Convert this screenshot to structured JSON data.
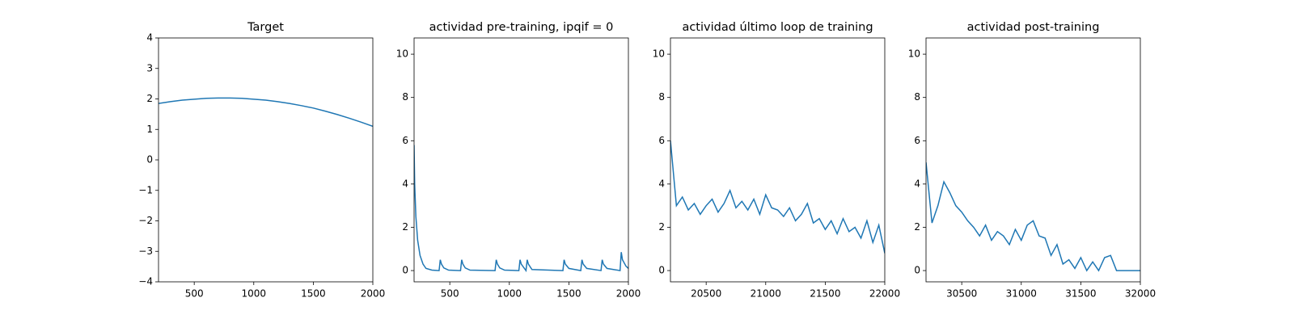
{
  "chart_data": [
    {
      "type": "line",
      "title": "Target",
      "color": "#1f77b4",
      "x": [
        200,
        300,
        400,
        500,
        600,
        700,
        800,
        900,
        1000,
        1100,
        1200,
        1300,
        1400,
        1500,
        1600,
        1700,
        1800,
        1900,
        2000
      ],
      "values": [
        1.85,
        1.91,
        1.96,
        1.99,
        2.02,
        2.03,
        2.03,
        2.02,
        1.99,
        1.96,
        1.91,
        1.85,
        1.78,
        1.7,
        1.6,
        1.49,
        1.37,
        1.24,
        1.1
      ],
      "xlim": [
        200,
        2000
      ],
      "xticks": [
        500,
        1000,
        1500,
        2000
      ],
      "ylim": [
        -4,
        4
      ],
      "yticks": [
        {
          "value": -4,
          "label": "−4"
        },
        {
          "value": -3,
          "label": "−3"
        },
        {
          "value": -2,
          "label": "−2"
        },
        {
          "value": -1,
          "label": "−1"
        },
        0,
        1,
        2,
        3,
        4
      ]
    },
    {
      "type": "line",
      "title": "actividad pre-training, ipqif = 0",
      "color": "#1f77b4",
      "x": [
        200,
        205,
        215,
        230,
        250,
        275,
        300,
        350,
        410,
        420,
        430,
        450,
        490,
        590,
        600,
        610,
        630,
        670,
        880,
        890,
        900,
        920,
        960,
        1080,
        1090,
        1100,
        1140,
        1150,
        1160,
        1190,
        1450,
        1460,
        1470,
        1500,
        1600,
        1610,
        1620,
        1650,
        1770,
        1780,
        1790,
        1820,
        1930,
        1940,
        1950,
        1980,
        2000
      ],
      "values": [
        5.8,
        4.0,
        2.5,
        1.4,
        0.7,
        0.3,
        0.1,
        0.02,
        0,
        0.5,
        0.3,
        0.12,
        0.02,
        0,
        0.5,
        0.3,
        0.12,
        0.02,
        0,
        0.5,
        0.3,
        0.12,
        0.02,
        0,
        0.5,
        0.3,
        0,
        0.5,
        0.3,
        0.05,
        0,
        0.5,
        0.3,
        0.1,
        0,
        0.5,
        0.3,
        0.1,
        0,
        0.5,
        0.3,
        0.1,
        0,
        0.85,
        0.5,
        0.2,
        0.1
      ],
      "xlim": [
        200,
        2000
      ],
      "xticks": [
        500,
        1000,
        1500,
        2000
      ],
      "ylim": [
        -0.52,
        10.75
      ],
      "yticks": [
        0,
        2,
        4,
        6,
        8,
        10
      ]
    },
    {
      "type": "line",
      "title": "actividad último loop de training",
      "color": "#1f77b4",
      "x": [
        20200,
        20250,
        20300,
        20350,
        20400,
        20450,
        20500,
        20550,
        20600,
        20650,
        20700,
        20750,
        20800,
        20850,
        20900,
        20950,
        21000,
        21050,
        21100,
        21150,
        21200,
        21250,
        21300,
        21350,
        21400,
        21450,
        21500,
        21550,
        21600,
        21650,
        21700,
        21750,
        21800,
        21850,
        21900,
        21950,
        22000
      ],
      "values": [
        6.0,
        3.0,
        3.4,
        2.8,
        3.1,
        2.6,
        3.0,
        3.3,
        2.7,
        3.1,
        3.7,
        2.9,
        3.2,
        2.8,
        3.3,
        2.6,
        3.5,
        2.9,
        2.8,
        2.5,
        2.9,
        2.3,
        2.6,
        3.1,
        2.2,
        2.4,
        1.9,
        2.3,
        1.7,
        2.4,
        1.8,
        2.0,
        1.5,
        2.3,
        1.3,
        2.1,
        0.8
      ],
      "xlim": [
        20200,
        22000
      ],
      "xticks": [
        20500,
        21000,
        21500,
        22000
      ],
      "ylim": [
        -0.52,
        10.75
      ],
      "yticks": [
        0,
        2,
        4,
        6,
        8,
        10
      ]
    },
    {
      "type": "line",
      "title": "actividad post-training",
      "color": "#1f77b4",
      "x": [
        30200,
        30250,
        30300,
        30350,
        30400,
        30450,
        30500,
        30550,
        30600,
        30650,
        30700,
        30750,
        30800,
        30850,
        30900,
        30950,
        31000,
        31050,
        31100,
        31150,
        31200,
        31250,
        31300,
        31350,
        31400,
        31450,
        31500,
        31550,
        31600,
        31650,
        31700,
        31750,
        31800,
        31850,
        31900,
        31950,
        32000
      ],
      "values": [
        5.0,
        2.2,
        3.0,
        4.1,
        3.6,
        3.0,
        2.7,
        2.3,
        2.0,
        1.6,
        2.1,
        1.4,
        1.8,
        1.6,
        1.2,
        1.9,
        1.4,
        2.1,
        2.3,
        1.6,
        1.5,
        0.7,
        1.2,
        0.3,
        0.5,
        0.1,
        0.6,
        0.0,
        0.4,
        0.0,
        0.6,
        0.7,
        0.0,
        0.0,
        0.0,
        0.0,
        0.0
      ],
      "xlim": [
        30200,
        32000
      ],
      "xticks": [
        30500,
        31000,
        31500,
        32000
      ],
      "ylim": [
        -0.52,
        10.75
      ],
      "yticks": [
        0,
        2,
        4,
        6,
        8,
        10
      ]
    }
  ]
}
